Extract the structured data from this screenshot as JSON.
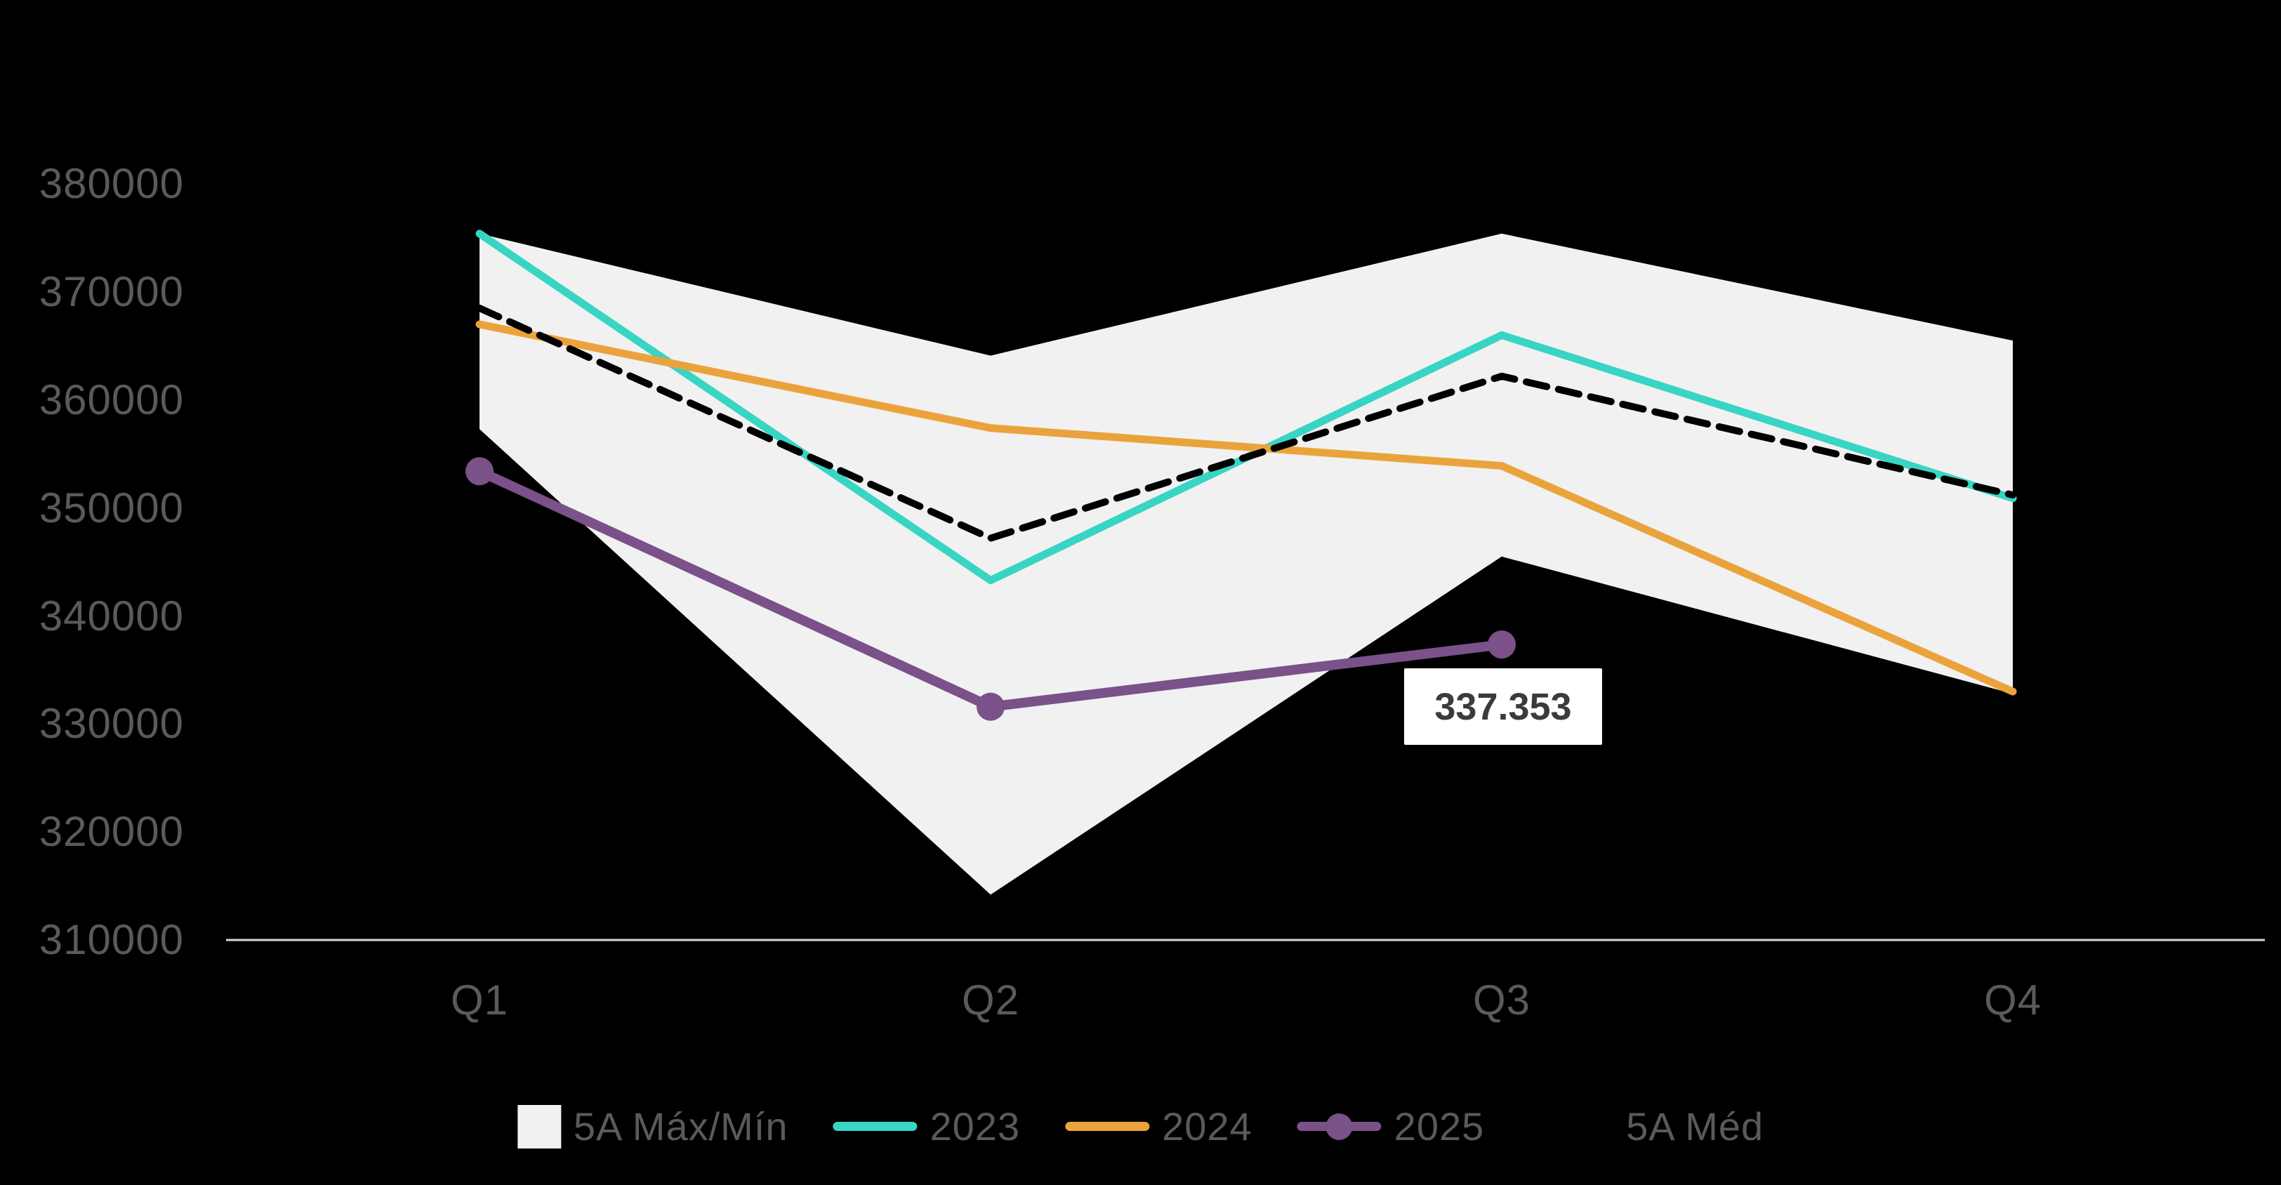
{
  "chart_data": {
    "type": "line",
    "title": "",
    "categories": [
      "Q1",
      "Q2",
      "Q3",
      "Q4"
    ],
    "y_axis": {
      "min": 310000,
      "max": 380000,
      "step": 10000,
      "labels": [
        "380000",
        "370000",
        "360000",
        "350000",
        "340000",
        "330000",
        "320000",
        "310000"
      ]
    },
    "grid": false,
    "legend_position": "bottom",
    "series": [
      {
        "name": "5A Máx/Mín",
        "type": "band",
        "color": "#F1F1F1",
        "max": [
          375400,
          364100,
          375400,
          365500
        ],
        "min": [
          357300,
          314200,
          345500,
          332800
        ]
      },
      {
        "name": "2023",
        "type": "line",
        "color": "#38D5C4",
        "values": [
          375400,
          343300,
          366000,
          350900
        ]
      },
      {
        "name": "2024",
        "type": "line",
        "color": "#EAA33C",
        "values": [
          367000,
          357400,
          353900,
          333000
        ]
      },
      {
        "name": "2025",
        "type": "line",
        "color": "#7B5189",
        "markers": true,
        "values": [
          353400,
          331600,
          337353
        ]
      },
      {
        "name": "5A Méd",
        "type": "line",
        "color": "#000000",
        "dashed": true,
        "values": [
          368500,
          347200,
          362200,
          351200
        ]
      }
    ],
    "annotation": {
      "text": "337.353",
      "series": "2025",
      "point_index": 2
    }
  },
  "axis_colors": {
    "baseline": "#D9D9D9",
    "tick_text": "#5A5A5A"
  },
  "annotation_label": {
    "text": "337.353"
  }
}
